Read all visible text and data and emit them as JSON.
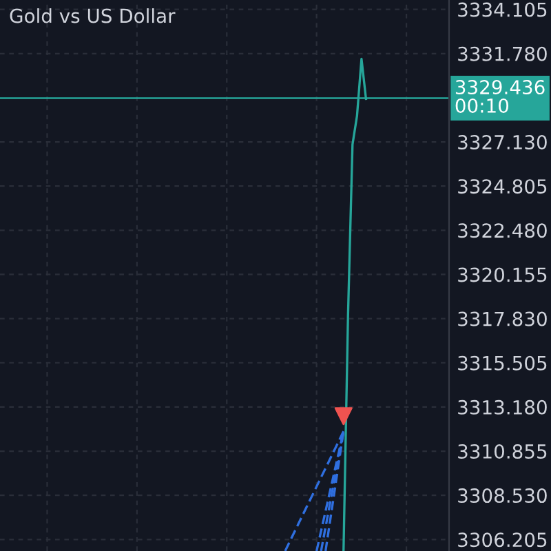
{
  "chart_data": {
    "type": "line",
    "title": "Gold vs US Dollar",
    "categories": [
      null,
      null,
      null,
      null,
      null,
      null,
      null,
      null,
      null,
      null,
      null,
      null,
      null,
      null,
      null,
      null,
      null,
      null,
      null,
      null,
      null,
      null,
      null,
      null,
      null,
      null,
      null,
      null,
      null,
      null,
      null,
      null,
      null,
      null,
      null,
      null,
      null,
      null,
      null,
      null,
      null,
      null,
      null,
      null,
      null,
      null,
      null,
      null,
      null,
      null,
      null,
      null,
      null,
      null,
      null,
      null,
      null,
      null,
      null,
      null,
      null,
      null,
      null,
      null,
      null,
      null,
      null,
      null,
      null,
      null,
      null,
      null,
      null,
      null,
      null,
      null,
      null,
      null,
      null,
      null,
      null,
      null,
      null,
      null,
      null,
      null,
      null,
      null,
      null,
      null,
      null,
      null,
      null,
      null,
      null,
      null,
      null,
      null,
      null,
      null
    ],
    "series": [
      {
        "type": "line",
        "color": "#2f6fe0",
        "line_style": "dashed",
        "values": [
          null,
          null,
          null,
          null,
          null,
          null,
          null,
          null,
          null,
          null,
          null,
          null,
          null,
          null,
          null,
          null,
          null,
          null,
          null,
          null,
          null,
          null,
          null,
          null,
          null,
          null,
          null,
          null,
          null,
          null,
          null,
          null,
          null,
          null,
          null,
          null,
          null,
          null,
          null,
          null,
          null,
          null,
          null,
          null,
          null,
          null,
          null,
          null,
          null,
          null,
          null,
          null,
          null,
          null,
          null,
          null,
          null,
          null,
          null,
          null,
          null,
          null,
          null,
          3305.6,
          null,
          null,
          null,
          null,
          null,
          null,
          null,
          null,
          null,
          null,
          null,
          null,
          3311.9,
          null,
          null,
          null,
          null,
          null,
          null,
          null,
          null,
          null,
          null,
          null,
          null,
          null,
          null,
          null,
          null,
          null,
          null,
          null,
          null,
          null,
          null,
          null
        ]
      },
      {
        "type": "line",
        "color": "#2f6fe0",
        "line_style": "dashed",
        "values": [
          null,
          null,
          null,
          null,
          null,
          null,
          null,
          null,
          null,
          null,
          null,
          null,
          null,
          null,
          null,
          null,
          null,
          null,
          null,
          null,
          null,
          null,
          null,
          null,
          null,
          null,
          null,
          null,
          null,
          null,
          null,
          null,
          null,
          null,
          null,
          null,
          null,
          null,
          null,
          null,
          null,
          null,
          null,
          null,
          null,
          null,
          null,
          null,
          null,
          null,
          null,
          null,
          null,
          null,
          null,
          null,
          null,
          null,
          null,
          null,
          null,
          null,
          null,
          null,
          null,
          null,
          null,
          null,
          null,
          null,
          3305.6,
          null,
          null,
          null,
          null,
          null,
          3311.9,
          null,
          null,
          null,
          null,
          null,
          null,
          null,
          null,
          null,
          null,
          null,
          null,
          null,
          null,
          null,
          null,
          null,
          null,
          null,
          null,
          null,
          null,
          null
        ]
      },
      {
        "type": "line",
        "color": "#2f6fe0",
        "line_style": "dashed",
        "values": [
          null,
          null,
          null,
          null,
          null,
          null,
          null,
          null,
          null,
          null,
          null,
          null,
          null,
          null,
          null,
          null,
          null,
          null,
          null,
          null,
          null,
          null,
          null,
          null,
          null,
          null,
          null,
          null,
          null,
          null,
          null,
          null,
          null,
          null,
          null,
          null,
          null,
          null,
          null,
          null,
          null,
          null,
          null,
          null,
          null,
          null,
          null,
          null,
          null,
          null,
          null,
          null,
          null,
          null,
          null,
          null,
          null,
          null,
          null,
          null,
          null,
          null,
          null,
          null,
          null,
          null,
          null,
          null,
          null,
          null,
          null,
          3305.6,
          null,
          null,
          null,
          null,
          3311.9,
          null,
          null,
          null,
          null,
          null,
          null,
          null,
          null,
          null,
          null,
          null,
          null,
          null,
          null,
          null,
          null,
          null,
          null,
          null,
          null,
          null,
          null,
          null
        ]
      },
      {
        "type": "line",
        "color": "#2f6fe0",
        "line_style": "dashed",
        "values": [
          null,
          null,
          null,
          null,
          null,
          null,
          null,
          null,
          null,
          null,
          null,
          null,
          null,
          null,
          null,
          null,
          null,
          null,
          null,
          null,
          null,
          null,
          null,
          null,
          null,
          null,
          null,
          null,
          null,
          null,
          null,
          null,
          null,
          null,
          null,
          null,
          null,
          null,
          null,
          null,
          null,
          null,
          null,
          null,
          null,
          null,
          null,
          null,
          null,
          null,
          null,
          null,
          null,
          null,
          null,
          null,
          null,
          null,
          null,
          null,
          null,
          null,
          null,
          null,
          null,
          null,
          null,
          null,
          null,
          null,
          null,
          null,
          3305.6,
          null,
          null,
          null,
          3311.9,
          null,
          null,
          null,
          null,
          null,
          null,
          null,
          null,
          null,
          null,
          null,
          null,
          null,
          null,
          null,
          null,
          null,
          null,
          null,
          null,
          null,
          null,
          null
        ]
      },
      {
        "type": "line",
        "color": "#26a69a",
        "line_style": "solid",
        "values": [
          null,
          null,
          null,
          null,
          null,
          null,
          null,
          null,
          null,
          null,
          null,
          null,
          null,
          null,
          null,
          null,
          null,
          null,
          null,
          null,
          null,
          null,
          null,
          null,
          null,
          null,
          null,
          null,
          null,
          null,
          null,
          null,
          null,
          null,
          null,
          null,
          null,
          null,
          null,
          null,
          null,
          null,
          null,
          null,
          null,
          null,
          null,
          null,
          null,
          null,
          null,
          null,
          null,
          null,
          null,
          null,
          null,
          null,
          null,
          null,
          null,
          null,
          null,
          null,
          null,
          null,
          null,
          null,
          null,
          null,
          null,
          null,
          null,
          null,
          null,
          null,
          3305.6,
          3318.0,
          3327.0,
          3328.5,
          3331.5,
          3329.4,
          null,
          null,
          null,
          null,
          null,
          null,
          null,
          null,
          null,
          null,
          null,
          null,
          null,
          null,
          null,
          null,
          null,
          null
        ]
      },
      {
        "type": "scatter",
        "color": "#ef5350",
        "marker": "triangle",
        "values": [
          null,
          null,
          null,
          null,
          null,
          null,
          null,
          null,
          null,
          null,
          null,
          null,
          null,
          null,
          null,
          null,
          null,
          null,
          null,
          null,
          null,
          null,
          null,
          null,
          null,
          null,
          null,
          null,
          null,
          null,
          null,
          null,
          null,
          null,
          null,
          null,
          null,
          null,
          null,
          null,
          null,
          null,
          null,
          null,
          null,
          null,
          null,
          null,
          null,
          null,
          null,
          null,
          null,
          null,
          null,
          null,
          null,
          null,
          null,
          null,
          null,
          null,
          null,
          null,
          null,
          null,
          null,
          null,
          null,
          null,
          null,
          null,
          null,
          null,
          null,
          null,
          3312.7,
          null,
          null,
          null,
          null,
          null,
          null,
          null,
          null,
          null,
          null,
          null,
          null,
          null,
          null,
          null,
          null,
          null,
          null,
          null,
          null,
          null,
          null,
          null
        ]
      }
    ],
    "ylim": [
      3305.6,
      3334.6
    ],
    "yticks": [
      3306.205,
      {
        "value": 3308.53,
        "label": "3308.530"
      },
      3310.855,
      {
        "value": 3313.18,
        "label": "3313.180"
      },
      3315.505,
      {
        "value": 3317.83,
        "label": "3317.830"
      },
      3320.155,
      {
        "value": 3322.48,
        "label": "3322.480"
      },
      3324.805,
      {
        "value": 3327.13,
        "label": "3327.130"
      },
      {
        "value": 3331.78,
        "label": "3331.780"
      },
      3334.105
    ],
    "tick_labels": "y",
    "grid": true,
    "ref_lines": [
      {
        "axis": "y",
        "value": 3329.436,
        "label": "3329.436\n00:10",
        "color": "#26a69a",
        "line_style": "solid"
      }
    ]
  }
}
